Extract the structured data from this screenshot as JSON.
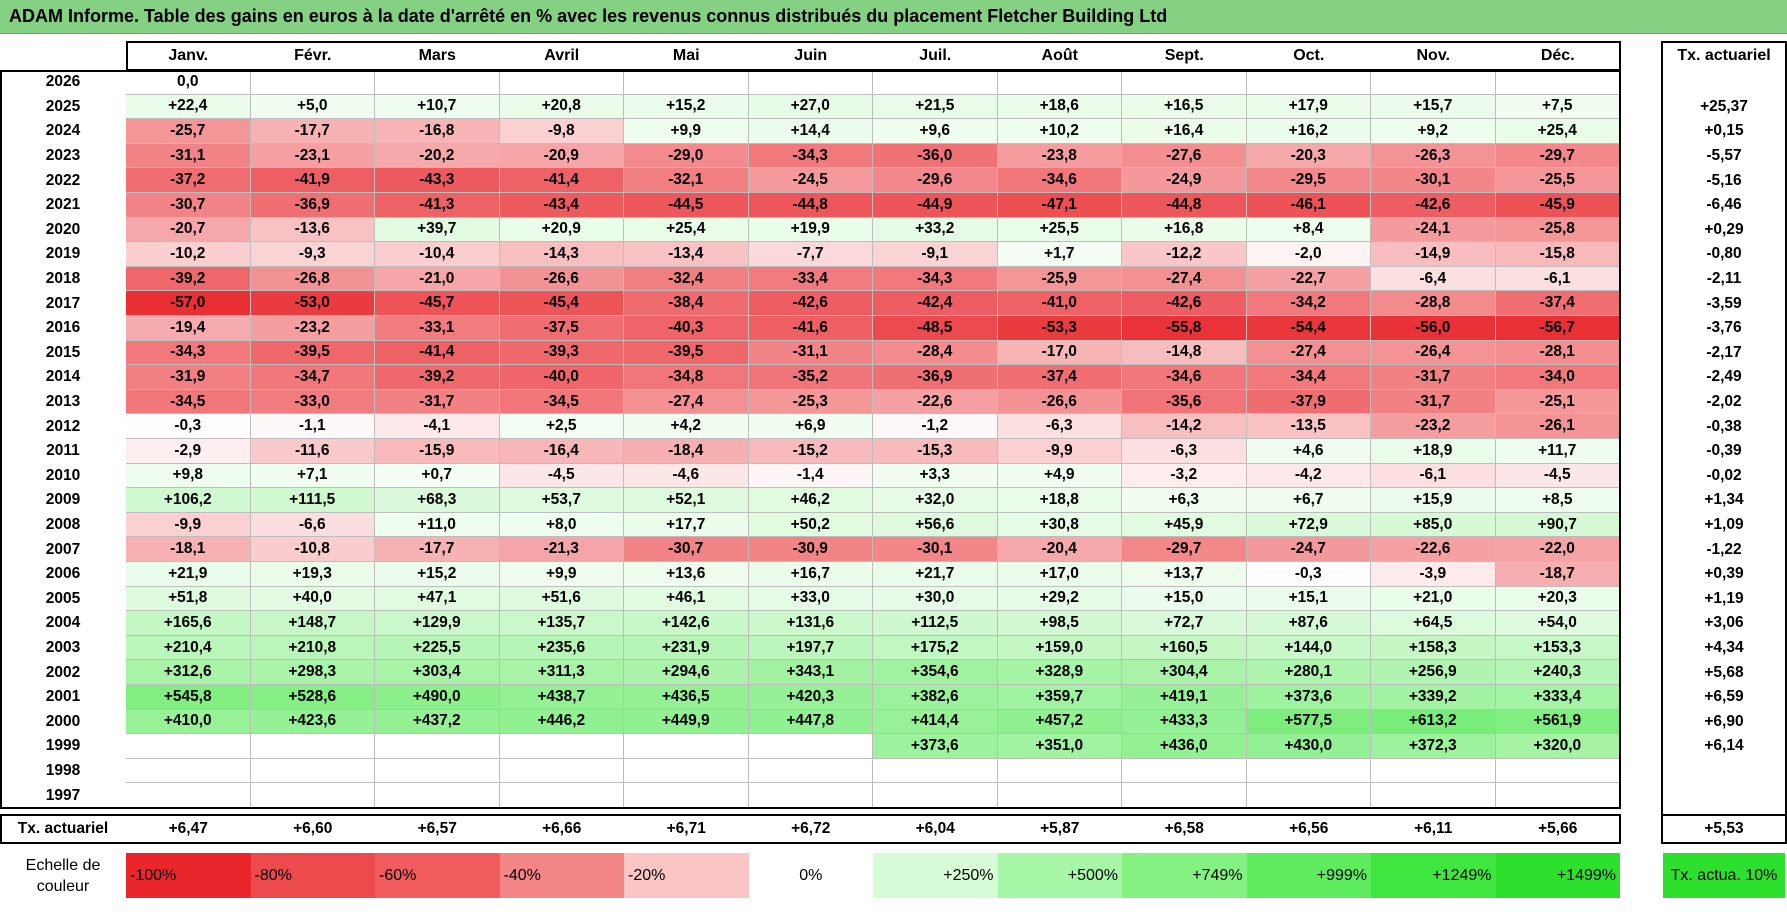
{
  "title": "ADAM Informe. Table des gains en euros à la date d'arrêté en % avec les revenus connus distribués du placement Fletcher Building Ltd",
  "colors": {
    "title_bg": "#84d184",
    "negative_max": "#e8262b",
    "positive_max": "#2de02d",
    "neutral": "#ffffff"
  },
  "chart_data": {
    "type": "heatmap",
    "title": "ADAM Informe. Table des gains en euros à la date d'arrêté en % avec les revenus connus distribués du placement Fletcher Building Ltd",
    "months": [
      "Janv.",
      "Févr.",
      "Mars",
      "Avril",
      "Mai",
      "Juin",
      "Juil.",
      "Août",
      "Sept.",
      "Oct.",
      "Nov.",
      "Déc."
    ],
    "actuarial_header": "Tx. actuariel",
    "rows": [
      {
        "year": "2026",
        "values": [
          "0,0",
          "",
          "",
          "",
          "",
          "",
          "",
          "",
          "",
          "",
          "",
          ""
        ],
        "rate": ""
      },
      {
        "year": "2025",
        "values": [
          "+22,4",
          "+5,0",
          "+10,7",
          "+20,8",
          "+15,2",
          "+27,0",
          "+21,5",
          "+18,6",
          "+16,5",
          "+17,9",
          "+15,7",
          "+7,5"
        ],
        "rate": "+25,37"
      },
      {
        "year": "2024",
        "values": [
          "-25,7",
          "-17,7",
          "-16,8",
          "-9,8",
          "+9,9",
          "+14,4",
          "+9,6",
          "+10,2",
          "+16,4",
          "+16,2",
          "+9,2",
          "+25,4"
        ],
        "rate": "+0,15"
      },
      {
        "year": "2023",
        "values": [
          "-31,1",
          "-23,1",
          "-20,2",
          "-20,9",
          "-29,0",
          "-34,3",
          "-36,0",
          "-23,8",
          "-27,6",
          "-20,3",
          "-26,3",
          "-29,7"
        ],
        "rate": "-5,57"
      },
      {
        "year": "2022",
        "values": [
          "-37,2",
          "-41,9",
          "-43,3",
          "-41,4",
          "-32,1",
          "-24,5",
          "-29,6",
          "-34,6",
          "-24,9",
          "-29,5",
          "-30,1",
          "-25,5"
        ],
        "rate": "-5,16"
      },
      {
        "year": "2021",
        "values": [
          "-30,7",
          "-36,9",
          "-41,3",
          "-43,4",
          "-44,5",
          "-44,8",
          "-44,9",
          "-47,1",
          "-44,8",
          "-46,1",
          "-42,6",
          "-45,9"
        ],
        "rate": "-6,46"
      },
      {
        "year": "2020",
        "values": [
          "-20,7",
          "-13,6",
          "+39,7",
          "+20,9",
          "+25,4",
          "+19,9",
          "+33,2",
          "+25,5",
          "+16,8",
          "+8,4",
          "-24,1",
          "-25,8"
        ],
        "rate": "+0,29"
      },
      {
        "year": "2019",
        "values": [
          "-10,2",
          "-9,3",
          "-10,4",
          "-14,3",
          "-13,4",
          "-7,7",
          "-9,1",
          "+1,7",
          "-12,2",
          "-2,0",
          "-14,9",
          "-15,8"
        ],
        "rate": "-0,80"
      },
      {
        "year": "2018",
        "values": [
          "-39,2",
          "-26,8",
          "-21,0",
          "-26,6",
          "-32,4",
          "-33,4",
          "-34,3",
          "-25,9",
          "-27,4",
          "-22,7",
          "-6,4",
          "-6,1"
        ],
        "rate": "-2,11"
      },
      {
        "year": "2017",
        "values": [
          "-57,0",
          "-53,0",
          "-45,7",
          "-45,4",
          "-38,4",
          "-42,6",
          "-42,4",
          "-41,0",
          "-42,6",
          "-34,2",
          "-28,8",
          "-37,4"
        ],
        "rate": "-3,59"
      },
      {
        "year": "2016",
        "values": [
          "-19,4",
          "-23,2",
          "-33,1",
          "-37,5",
          "-40,3",
          "-41,6",
          "-48,5",
          "-53,3",
          "-55,8",
          "-54,4",
          "-56,0",
          "-56,7"
        ],
        "rate": "-3,76"
      },
      {
        "year": "2015",
        "values": [
          "-34,3",
          "-39,5",
          "-41,4",
          "-39,3",
          "-39,5",
          "-31,1",
          "-28,4",
          "-17,0",
          "-14,8",
          "-27,4",
          "-26,4",
          "-28,1"
        ],
        "rate": "-2,17"
      },
      {
        "year": "2014",
        "values": [
          "-31,9",
          "-34,7",
          "-39,2",
          "-40,0",
          "-34,8",
          "-35,2",
          "-36,9",
          "-37,4",
          "-34,6",
          "-34,4",
          "-31,7",
          "-34,0"
        ],
        "rate": "-2,49"
      },
      {
        "year": "2013",
        "values": [
          "-34,5",
          "-33,0",
          "-31,7",
          "-34,5",
          "-27,4",
          "-25,3",
          "-22,6",
          "-26,6",
          "-35,6",
          "-37,9",
          "-31,7",
          "-25,1"
        ],
        "rate": "-2,02"
      },
      {
        "year": "2012",
        "values": [
          "-0,3",
          "-1,1",
          "-4,1",
          "+2,5",
          "+4,2",
          "+6,9",
          "-1,2",
          "-6,3",
          "-14,2",
          "-13,5",
          "-23,2",
          "-26,1"
        ],
        "rate": "-0,38"
      },
      {
        "year": "2011",
        "values": [
          "-2,9",
          "-11,6",
          "-15,9",
          "-16,4",
          "-18,4",
          "-15,2",
          "-15,3",
          "-9,9",
          "-6,3",
          "+4,6",
          "+18,9",
          "+11,7"
        ],
        "rate": "-0,39"
      },
      {
        "year": "2010",
        "values": [
          "+9,8",
          "+7,1",
          "+0,7",
          "-4,5",
          "-4,6",
          "-1,4",
          "+3,3",
          "+4,9",
          "-3,2",
          "-4,2",
          "-6,1",
          "-4,5"
        ],
        "rate": "-0,02"
      },
      {
        "year": "2009",
        "values": [
          "+106,2",
          "+111,5",
          "+68,3",
          "+53,7",
          "+52,1",
          "+46,2",
          "+32,0",
          "+18,8",
          "+6,3",
          "+6,7",
          "+15,9",
          "+8,5"
        ],
        "rate": "+1,34"
      },
      {
        "year": "2008",
        "values": [
          "-9,9",
          "-6,6",
          "+11,0",
          "+8,0",
          "+17,7",
          "+50,2",
          "+56,6",
          "+30,8",
          "+45,9",
          "+72,9",
          "+85,0",
          "+90,7"
        ],
        "rate": "+1,09"
      },
      {
        "year": "2007",
        "values": [
          "-18,1",
          "-10,8",
          "-17,7",
          "-21,3",
          "-30,7",
          "-30,9",
          "-30,1",
          "-20,4",
          "-29,7",
          "-24,7",
          "-22,6",
          "-22,0"
        ],
        "rate": "-1,22"
      },
      {
        "year": "2006",
        "values": [
          "+21,9",
          "+19,3",
          "+15,2",
          "+9,9",
          "+13,6",
          "+16,7",
          "+21,7",
          "+17,0",
          "+13,7",
          "-0,3",
          "-3,9",
          "-18,7"
        ],
        "rate": "+0,39"
      },
      {
        "year": "2005",
        "values": [
          "+51,8",
          "+40,0",
          "+47,1",
          "+51,6",
          "+46,1",
          "+33,0",
          "+30,0",
          "+29,2",
          "+15,0",
          "+15,1",
          "+21,0",
          "+20,3"
        ],
        "rate": "+1,19"
      },
      {
        "year": "2004",
        "values": [
          "+165,6",
          "+148,7",
          "+129,9",
          "+135,7",
          "+142,6",
          "+131,6",
          "+112,5",
          "+98,5",
          "+72,7",
          "+87,6",
          "+64,5",
          "+54,0"
        ],
        "rate": "+3,06"
      },
      {
        "year": "2003",
        "values": [
          "+210,4",
          "+210,8",
          "+225,5",
          "+235,6",
          "+231,9",
          "+197,7",
          "+175,2",
          "+159,0",
          "+160,5",
          "+144,0",
          "+158,3",
          "+153,3"
        ],
        "rate": "+4,34"
      },
      {
        "year": "2002",
        "values": [
          "+312,6",
          "+298,3",
          "+303,4",
          "+311,3",
          "+294,6",
          "+343,1",
          "+354,6",
          "+328,9",
          "+304,4",
          "+280,1",
          "+256,9",
          "+240,3"
        ],
        "rate": "+5,68"
      },
      {
        "year": "2001",
        "values": [
          "+545,8",
          "+528,6",
          "+490,0",
          "+438,7",
          "+436,5",
          "+420,3",
          "+382,6",
          "+359,7",
          "+419,1",
          "+373,6",
          "+339,2",
          "+333,4"
        ],
        "rate": "+6,59"
      },
      {
        "year": "2000",
        "values": [
          "+410,0",
          "+423,6",
          "+437,2",
          "+446,2",
          "+449,9",
          "+447,8",
          "+414,4",
          "+457,2",
          "+433,3",
          "+577,5",
          "+613,2",
          "+561,9"
        ],
        "rate": "+6,90"
      },
      {
        "year": "1999",
        "values": [
          "",
          "",
          "",
          "",
          "",
          "",
          "+373,6",
          "+351,0",
          "+436,0",
          "+430,0",
          "+372,3",
          "+320,0"
        ],
        "rate": "+6,14"
      },
      {
        "year": "1998",
        "values": [
          "",
          "",
          "",
          "",
          "",
          "",
          "",
          "",
          "",
          "",
          "",
          ""
        ],
        "rate": ""
      },
      {
        "year": "1997",
        "values": [
          "",
          "",
          "",
          "",
          "",
          "",
          "",
          "",
          "",
          "",
          "",
          ""
        ],
        "rate": ""
      }
    ],
    "footer": {
      "label": "Tx. actuariel",
      "values": [
        "+6,47",
        "+6,60",
        "+6,57",
        "+6,66",
        "+6,71",
        "+6,72",
        "+6,04",
        "+5,87",
        "+6,58",
        "+6,56",
        "+6,11",
        "+5,66"
      ],
      "rate": "+5,53"
    },
    "legend": {
      "label": "Echelle de couleur",
      "items": [
        {
          "label": "-100%",
          "color": "#e8262b"
        },
        {
          "label": "-80%",
          "color": "#ec4a4d"
        },
        {
          "label": "-60%",
          "color": "#f05b5e"
        },
        {
          "label": "-40%",
          "color": "#f48587"
        },
        {
          "label": "-20%",
          "color": "#fbc4c5"
        },
        {
          "label": "0%",
          "color": "#ffffff"
        },
        {
          "label": "+250%",
          "color": "#d6fbd6"
        },
        {
          "label": "+500%",
          "color": "#a8f7a8"
        },
        {
          "label": "+749%",
          "color": "#83f283"
        },
        {
          "label": "+999%",
          "color": "#5eec5e"
        },
        {
          "label": "+1249%",
          "color": "#40e640"
        },
        {
          "label": "+1499%",
          "color": "#2de02d"
        }
      ],
      "rate_label": "Tx. actua. 10%",
      "rate_color": "#2de02d"
    }
  }
}
